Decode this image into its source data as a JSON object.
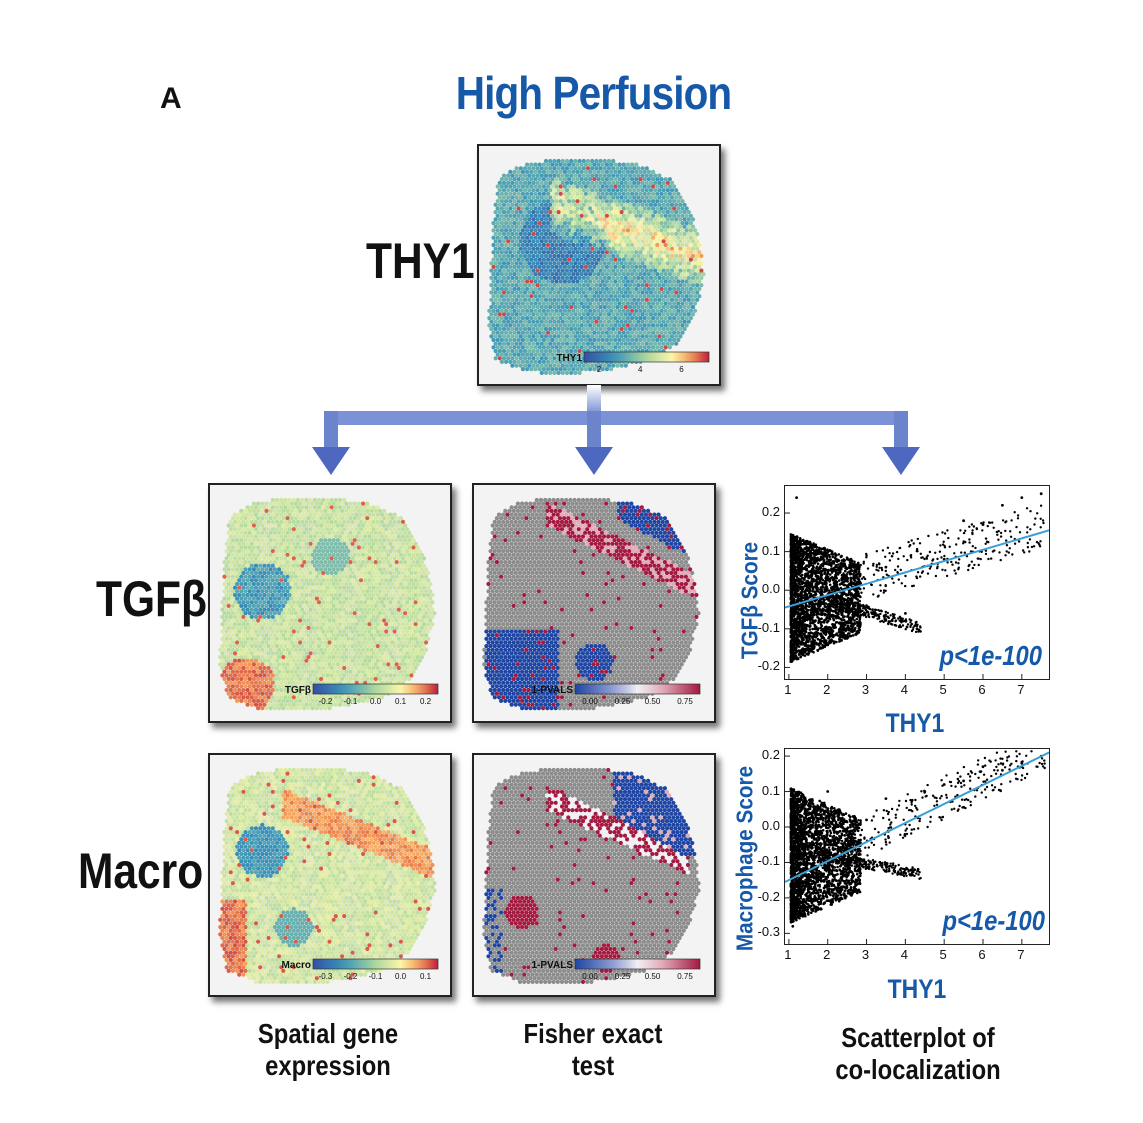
{
  "panel_letter": "A",
  "title": "High Perfusion",
  "rows": {
    "thy1": "THY1",
    "tgfb": "TGFβ",
    "macro": "Macro"
  },
  "maps": {
    "thy1": {
      "colorbar_label": "THY1",
      "ticks": [
        "2",
        "4",
        "6"
      ]
    },
    "tgfb_expr": {
      "colorbar_label": "TGFβ",
      "ticks": [
        "-0.2",
        "-0.1",
        "0.0",
        "0.1",
        "0.2"
      ]
    },
    "tgfb_fisher": {
      "colorbar_label": "1-PVALS",
      "ticks": [
        "0.00",
        "0.25",
        "0.50",
        "0.75"
      ]
    },
    "macro_expr": {
      "colorbar_label": "Macro",
      "ticks": [
        "-0.3",
        "-0.2",
        "-0.1",
        "0.0",
        "0.1"
      ]
    },
    "macro_fisher": {
      "colorbar_label": "1-PVALS",
      "ticks": [
        "0.00",
        "0.25",
        "0.50",
        "0.75"
      ]
    }
  },
  "captions": {
    "col1": [
      "Spatial gene",
      "expression"
    ],
    "col2": [
      "Fisher exact",
      "test"
    ],
    "col3": [
      "Scatterplot of",
      "co-localization"
    ]
  },
  "colors": {
    "title_blue": "#1559a8",
    "arrow_blue": "#5672c4",
    "fit_line": "#3a9fd8",
    "fisher_gray": "#8c8c8c",
    "fisher_red": "#a3193f",
    "fisher_blue": "#1f45a3"
  },
  "chart_data": [
    {
      "type": "scatter",
      "title": "",
      "xlabel": "THY1",
      "ylabel": "TGFβ Score",
      "annotation": "p<1e-100",
      "xlim": [
        0.9,
        7.7
      ],
      "ylim": [
        -0.23,
        0.27
      ],
      "xticks": [
        1,
        2,
        3,
        4,
        5,
        6,
        7
      ],
      "yticks": [
        0.2,
        0.1,
        0.0,
        -0.1,
        -0.2
      ],
      "ytick_labels": [
        "0.2",
        "0.1",
        "0.0",
        "-0.1",
        "-0.2"
      ],
      "fit_line": {
        "x": [
          0.9,
          7.7
        ],
        "y": [
          -0.045,
          0.155
        ]
      },
      "points_sample": [
        [
          1.1,
          -0.15
        ],
        [
          1.2,
          0.24
        ],
        [
          1.3,
          0.05
        ],
        [
          1.5,
          -0.02
        ],
        [
          1.8,
          0.1
        ],
        [
          2.0,
          -0.05
        ],
        [
          2.4,
          0.03
        ],
        [
          3.0,
          -0.04
        ],
        [
          3.5,
          0.06
        ],
        [
          4.0,
          -0.06
        ],
        [
          4.3,
          -0.1
        ],
        [
          5.0,
          0.08
        ],
        [
          5.5,
          0.18
        ],
        [
          6.0,
          0.17
        ],
        [
          6.5,
          0.22
        ],
        [
          7.0,
          0.24
        ],
        [
          7.5,
          0.25
        ]
      ]
    },
    {
      "type": "scatter",
      "title": "",
      "xlabel": "THY1",
      "ylabel": "Macrophage Score",
      "annotation": "p<1e-100",
      "xlim": [
        0.9,
        7.7
      ],
      "ylim": [
        -0.33,
        0.22
      ],
      "xticks": [
        1,
        2,
        3,
        4,
        5,
        6,
        7
      ],
      "yticks": [
        0.2,
        0.1,
        0.0,
        -0.1,
        -0.2,
        -0.3
      ],
      "ytick_labels": [
        "0.2",
        "0.1",
        "0.0",
        "-0.1",
        "-0.2",
        "-0.3"
      ],
      "fit_line": {
        "x": [
          0.9,
          7.7
        ],
        "y": [
          -0.155,
          0.21
        ]
      },
      "points_sample": [
        [
          1.1,
          -0.28
        ],
        [
          1.3,
          -0.1
        ],
        [
          1.5,
          0.05
        ],
        [
          1.8,
          -0.06
        ],
        [
          2.0,
          0.1
        ],
        [
          2.5,
          -0.12
        ],
        [
          3.0,
          0.02
        ],
        [
          3.5,
          0.08
        ],
        [
          4.0,
          -0.13
        ],
        [
          4.5,
          0.1
        ],
        [
          5.0,
          0.12
        ],
        [
          5.5,
          0.13
        ],
        [
          6.0,
          0.17
        ],
        [
          6.5,
          0.16
        ],
        [
          7.0,
          0.18
        ],
        [
          7.5,
          0.2
        ]
      ]
    }
  ]
}
